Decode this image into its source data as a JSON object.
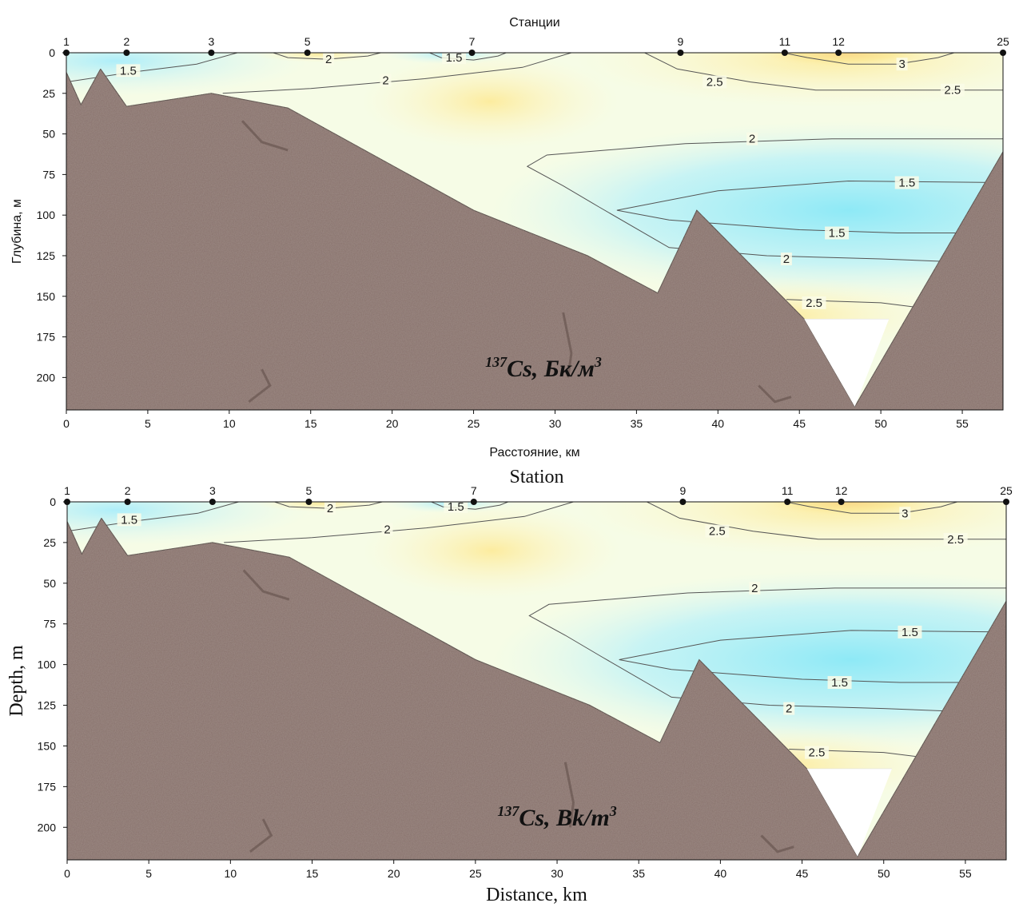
{
  "chart_data": [
    {
      "type": "heatmap",
      "subtype": "contour-cross-section",
      "title": "Станции",
      "xlabel": "Расстояние, км",
      "ylabel": "Глубина, м",
      "annotation": {
        "isotope": "137",
        "text": "Cs, Бк/м",
        "power": "3"
      },
      "font": "sans",
      "xlim": [
        0,
        57.5
      ],
      "ylim": [
        220,
        0
      ],
      "xticks": [
        0,
        5,
        10,
        15,
        20,
        25,
        30,
        35,
        40,
        45,
        50,
        55
      ],
      "yticks": [
        0,
        25,
        50,
        75,
        100,
        125,
        150,
        175,
        200
      ],
      "stations": [
        {
          "label": "1",
          "x": 0
        },
        {
          "label": "2",
          "x": 3.7
        },
        {
          "label": "3",
          "x": 8.9
        },
        {
          "label": "5",
          "x": 14.8
        },
        {
          "label": "7",
          "x": 24.9
        },
        {
          "label": "9",
          "x": 37.7
        },
        {
          "label": "11",
          "x": 44.1
        },
        {
          "label": "12",
          "x": 47.4
        },
        {
          "label": "25",
          "x": 57.5
        }
      ],
      "bottom_profile": [
        [
          0,
          12
        ],
        [
          0.9,
          32
        ],
        [
          2.1,
          10
        ],
        [
          3.7,
          33
        ],
        [
          8.9,
          25
        ],
        [
          13.6,
          34
        ],
        [
          25,
          97
        ],
        [
          32,
          125
        ],
        [
          36.3,
          148
        ],
        [
          38.7,
          97
        ],
        [
          45.3,
          164
        ],
        [
          48.4,
          218
        ],
        [
          57.5,
          61
        ]
      ],
      "data_extent_bottom": [
        [
          45.3,
          164
        ],
        [
          48.4,
          218
        ],
        [
          50.5,
          164
        ]
      ],
      "contours": [
        {
          "level": "1.5",
          "labels": [
            {
              "x": 3.8,
              "y": 11
            },
            {
              "x": 23.8,
              "y": 3
            },
            {
              "x": 51.6,
              "y": 80
            },
            {
              "x": 47.3,
              "y": 111
            }
          ]
        },
        {
          "level": "2",
          "labels": [
            {
              "x": 16.1,
              "y": 4
            },
            {
              "x": 19.6,
              "y": 17
            },
            {
              "x": 42.1,
              "y": 53
            },
            {
              "x": 44.2,
              "y": 127
            }
          ]
        },
        {
          "level": "2.5",
          "labels": [
            {
              "x": 39.8,
              "y": 18
            },
            {
              "x": 54.4,
              "y": 23
            },
            {
              "x": 45.9,
              "y": 154
            }
          ]
        },
        {
          "level": "3",
          "labels": [
            {
              "x": 51.3,
              "y": 7
            }
          ]
        }
      ],
      "colormap": {
        "low": "#a6eef9",
        "mid": "#f7fde8",
        "high": "#fbe690"
      }
    },
    {
      "type": "heatmap",
      "subtype": "contour-cross-section",
      "title": "Station",
      "xlabel": "Distance, km",
      "ylabel": "Depth, m",
      "annotation": {
        "isotope": "137",
        "text": "Cs, Bk/m",
        "power": "3"
      },
      "font": "serif",
      "xlim": [
        0,
        57.5
      ],
      "ylim": [
        220,
        0
      ],
      "xticks": [
        0,
        5,
        10,
        15,
        20,
        25,
        30,
        35,
        40,
        45,
        50,
        55
      ],
      "yticks": [
        0,
        25,
        50,
        75,
        100,
        125,
        150,
        175,
        200
      ],
      "stations": [
        {
          "label": "1",
          "x": 0
        },
        {
          "label": "2",
          "x": 3.7
        },
        {
          "label": "3",
          "x": 8.9
        },
        {
          "label": "5",
          "x": 14.8
        },
        {
          "label": "7",
          "x": 24.9
        },
        {
          "label": "9",
          "x": 37.7
        },
        {
          "label": "11",
          "x": 44.1
        },
        {
          "label": "12",
          "x": 47.4
        },
        {
          "label": "25",
          "x": 57.5
        }
      ],
      "bottom_profile": [
        [
          0,
          12
        ],
        [
          0.9,
          32
        ],
        [
          2.1,
          10
        ],
        [
          3.7,
          33
        ],
        [
          8.9,
          25
        ],
        [
          13.6,
          34
        ],
        [
          25,
          97
        ],
        [
          32,
          125
        ],
        [
          36.3,
          148
        ],
        [
          38.7,
          97
        ],
        [
          45.3,
          164
        ],
        [
          48.4,
          218
        ],
        [
          57.5,
          61
        ]
      ],
      "data_extent_bottom": [
        [
          45.3,
          164
        ],
        [
          48.4,
          218
        ],
        [
          50.5,
          164
        ]
      ],
      "contours": [
        {
          "level": "1.5",
          "labels": [
            {
              "x": 3.8,
              "y": 11
            },
            {
              "x": 23.8,
              "y": 3
            },
            {
              "x": 51.6,
              "y": 80
            },
            {
              "x": 47.3,
              "y": 111
            }
          ]
        },
        {
          "level": "2",
          "labels": [
            {
              "x": 16.1,
              "y": 4
            },
            {
              "x": 19.6,
              "y": 17
            },
            {
              "x": 42.1,
              "y": 53
            },
            {
              "x": 44.2,
              "y": 127
            }
          ]
        },
        {
          "level": "2.5",
          "labels": [
            {
              "x": 39.8,
              "y": 18
            },
            {
              "x": 54.4,
              "y": 23
            },
            {
              "x": 45.9,
              "y": 154
            }
          ]
        },
        {
          "level": "3",
          "labels": [
            {
              "x": 51.3,
              "y": 7
            }
          ]
        }
      ],
      "colormap": {
        "low": "#a6eef9",
        "mid": "#f7fde8",
        "high": "#fbe690"
      }
    }
  ]
}
